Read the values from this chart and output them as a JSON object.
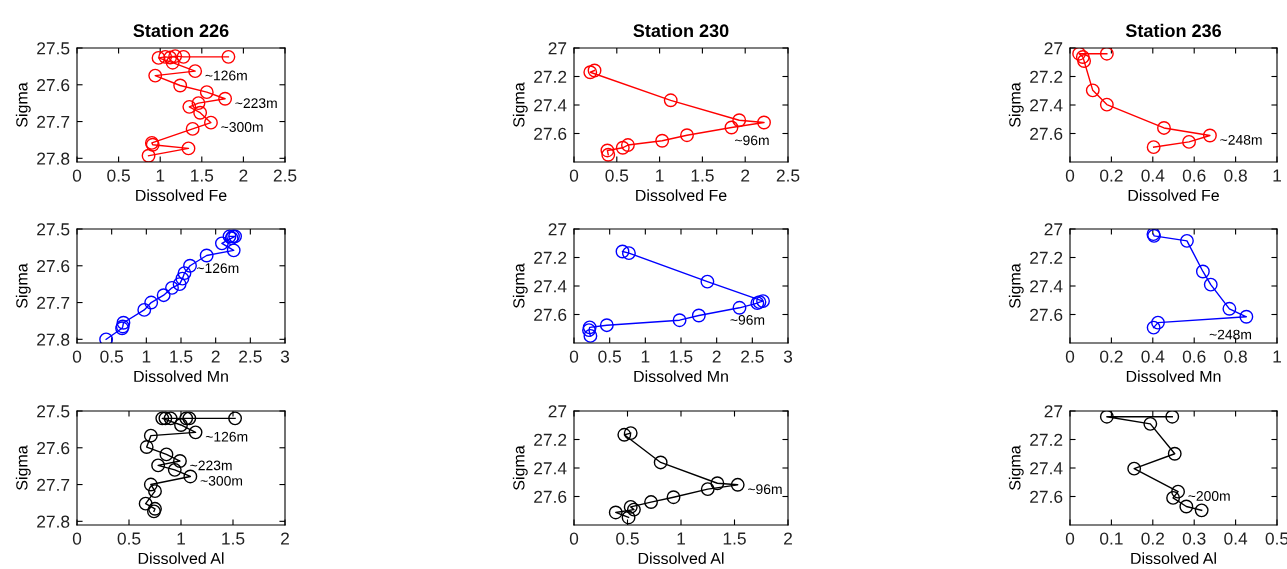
{
  "chart_data": [
    {
      "type": "line",
      "title": "Station 226",
      "xlabel": "Dissolved Fe",
      "ylabel": "Sigma",
      "xlim": [
        0,
        2.5
      ],
      "xticks": [
        0,
        0.5,
        1,
        1.5,
        2,
        2.5
      ],
      "ylim": [
        27.81,
        27.5
      ],
      "yticks": [
        27.5,
        27.6,
        27.7,
        27.8
      ],
      "marker": "circle",
      "line_style": "solid",
      "grid": false,
      "series": [
        {
          "color": "#ff0000",
          "x": [
            1.82,
            1.28,
            1.18,
            1.12,
            1.06,
            0.98,
            1.15,
            1.42,
            0.94,
            1.24,
            1.56,
            1.78,
            1.46,
            1.35,
            1.48,
            1.61,
            1.39,
            0.9,
            0.91,
            1.34,
            0.86
          ],
          "values": [
            27.524,
            27.524,
            27.522,
            27.526,
            27.524,
            27.527,
            27.54,
            27.563,
            27.575,
            27.602,
            27.62,
            27.638,
            27.65,
            27.66,
            27.676,
            27.703,
            27.72,
            27.758,
            27.763,
            27.773,
            27.793
          ]
        }
      ],
      "annotations": [
        {
          "text": "~126m",
          "x": 1.42,
          "y": 27.563
        },
        {
          "text": "~223m",
          "x": 1.78,
          "y": 27.638
        },
        {
          "text": "~300m",
          "x": 1.61,
          "y": 27.703
        }
      ]
    },
    {
      "type": "line",
      "title": "Station 230",
      "xlabel": "Dissolved Fe",
      "ylabel": "Sigma",
      "xlim": [
        0,
        2.5
      ],
      "xticks": [
        0,
        0.5,
        1,
        1.5,
        2,
        2.5
      ],
      "ylim": [
        27.8,
        27
      ],
      "yticks": [
        27,
        27.2,
        27.4,
        27.6
      ],
      "marker": "circle",
      "line_style": "solid",
      "grid": false,
      "series": [
        {
          "color": "#ff0000",
          "x": [
            0.24,
            0.19,
            1.13,
            1.93,
            2.22,
            1.84,
            1.32,
            1.03,
            0.63,
            0.57,
            0.39,
            0.4
          ],
          "values": [
            27.158,
            27.17,
            27.367,
            27.507,
            27.523,
            27.558,
            27.612,
            27.651,
            27.681,
            27.7,
            27.719,
            27.749
          ]
        }
      ],
      "annotations": [
        {
          "text": "~96m",
          "x": 2.22,
          "y": 27.523
        }
      ]
    },
    {
      "type": "line",
      "title": "Station 236",
      "xlabel": "Dissolved Fe",
      "ylabel": "Sigma",
      "xlim": [
        0,
        1
      ],
      "xticks": [
        0,
        0.2,
        0.4,
        0.6,
        0.8,
        1
      ],
      "ylim": [
        27.8,
        27
      ],
      "yticks": [
        27,
        27.2,
        27.4,
        27.6
      ],
      "marker": "circle",
      "line_style": "solid",
      "grid": false,
      "series": [
        {
          "color": "#ff0000",
          "x": [
            0.178,
            0.044,
            0.062,
            0.068,
            0.11,
            0.178,
            0.454,
            0.676,
            0.575,
            0.404
          ],
          "values": [
            27.04,
            27.04,
            27.063,
            27.091,
            27.297,
            27.397,
            27.561,
            27.614,
            27.659,
            27.696
          ]
        }
      ],
      "annotations": [
        {
          "text": "~248m",
          "x": 0.676,
          "y": 27.614
        }
      ]
    },
    {
      "type": "line",
      "xlabel": "Dissolved Mn",
      "ylabel": "Sigma",
      "xlim": [
        0,
        3
      ],
      "xticks": [
        0,
        0.5,
        1,
        1.5,
        2,
        2.5,
        3
      ],
      "ylim": [
        27.81,
        27.5
      ],
      "yticks": [
        27.5,
        27.6,
        27.7,
        27.8
      ],
      "marker": "circle",
      "line_style": "solid",
      "grid": false,
      "series": [
        {
          "color": "#0000ff",
          "x": [
            2.2,
            2.25,
            2.28,
            2.23,
            2.09,
            2.26,
            1.87,
            1.63,
            1.55,
            1.52,
            1.48,
            1.37,
            1.25,
            1.07,
            0.97,
            0.67,
            0.66,
            0.65,
            0.42
          ],
          "values": [
            27.52,
            27.52,
            27.52,
            27.525,
            27.539,
            27.558,
            27.572,
            27.6,
            27.62,
            27.635,
            27.65,
            27.66,
            27.68,
            27.7,
            27.72,
            27.755,
            27.765,
            27.77,
            27.8
          ]
        }
      ],
      "annotations": [
        {
          "text": "~126m",
          "x": 2.26,
          "y": 27.558
        }
      ]
    },
    {
      "type": "line",
      "xlabel": "Dissolved Mn",
      "ylabel": "Sigma",
      "xlim": [
        0,
        3
      ],
      "xticks": [
        0,
        0.5,
        1,
        1.5,
        2,
        2.5,
        3
      ],
      "ylim": [
        27.8,
        27
      ],
      "yticks": [
        27,
        27.2,
        27.4,
        27.6
      ],
      "marker": "circle",
      "line_style": "solid",
      "grid": false,
      "series": [
        {
          "color": "#0000ff",
          "x": [
            0.68,
            0.77,
            1.87,
            2.65,
            2.6,
            2.57,
            2.32,
            1.75,
            1.48,
            0.46,
            0.22,
            0.21,
            0.23
          ],
          "values": [
            27.158,
            27.169,
            27.369,
            27.506,
            27.513,
            27.52,
            27.553,
            27.607,
            27.64,
            27.675,
            27.69,
            27.71,
            27.75
          ]
        }
      ],
      "annotations": [
        {
          "text": "~96m",
          "x": 2.6,
          "y": 27.513
        }
      ]
    },
    {
      "type": "line",
      "xlabel": "Dissolved Mn",
      "ylabel": "Sigma",
      "xlim": [
        0,
        1
      ],
      "xticks": [
        0,
        0.2,
        0.4,
        0.6,
        0.8,
        1
      ],
      "ylim": [
        27.8,
        27
      ],
      "yticks": [
        27,
        27.2,
        27.4,
        27.6
      ],
      "marker": "circle",
      "line_style": "solid",
      "grid": false,
      "series": [
        {
          "color": "#0000ff",
          "x": [
            0.403,
            0.406,
            0.565,
            0.642,
            0.68,
            0.77,
            0.852,
            0.425,
            0.404
          ],
          "values": [
            27.036,
            27.048,
            27.083,
            27.298,
            27.39,
            27.56,
            27.616,
            27.657,
            27.692
          ]
        }
      ],
      "annotations": [
        {
          "text": "~248m",
          "x": 0.852,
          "y": 27.616
        }
      ]
    },
    {
      "type": "line",
      "xlabel": "Dissolved Al",
      "ylabel": "Sigma",
      "xlim": [
        0,
        2
      ],
      "xticks": [
        0,
        0.5,
        1,
        1.5,
        2
      ],
      "ylim": [
        27.81,
        27.5
      ],
      "yticks": [
        27.5,
        27.6,
        27.7,
        27.8
      ],
      "marker": "circle",
      "line_style": "solid",
      "grid": false,
      "series": [
        {
          "color": "#000000",
          "x": [
            1.52,
            1.08,
            1.05,
            0.9,
            0.85,
            0.82,
            1.0,
            1.14,
            0.71,
            0.67,
            0.86,
            0.99,
            0.78,
            0.94,
            1.09,
            0.71,
            0.75,
            0.66,
            0.75,
            0.74
          ],
          "values": [
            27.52,
            27.52,
            27.52,
            27.52,
            27.52,
            27.52,
            27.538,
            27.558,
            27.567,
            27.598,
            27.618,
            27.636,
            27.648,
            27.66,
            27.678,
            27.7,
            27.718,
            27.752,
            27.766,
            27.773
          ]
        }
      ],
      "annotations": [
        {
          "text": "~126m",
          "x": 1.14,
          "y": 27.558
        },
        {
          "text": "~223m",
          "x": 0.99,
          "y": 27.636
        },
        {
          "text": "~300m",
          "x": 1.09,
          "y": 27.678
        }
      ]
    },
    {
      "type": "line",
      "xlabel": "Dissolved Al",
      "ylabel": "Sigma",
      "xlim": [
        0,
        2
      ],
      "xticks": [
        0,
        0.5,
        1,
        1.5,
        2
      ],
      "ylim": [
        27.8,
        27
      ],
      "yticks": [
        27,
        27.2,
        27.4,
        27.6
      ],
      "marker": "circle",
      "line_style": "solid",
      "grid": false,
      "series": [
        {
          "color": "#000000",
          "x": [
            0.53,
            0.47,
            0.81,
            1.34,
            1.53,
            1.25,
            0.93,
            0.72,
            0.53,
            0.56,
            0.39,
            0.51
          ],
          "values": [
            27.155,
            27.167,
            27.361,
            27.507,
            27.518,
            27.548,
            27.605,
            27.639,
            27.673,
            27.692,
            27.712,
            27.747
          ]
        }
      ],
      "annotations": [
        {
          "text": "~96m",
          "x": 1.53,
          "y": 27.518
        }
      ]
    },
    {
      "type": "line",
      "xlabel": "Dissolved Al",
      "ylabel": "Sigma",
      "xlim": [
        0,
        0.5
      ],
      "xticks": [
        0,
        0.1,
        0.2,
        0.3,
        0.4,
        0.5
      ],
      "ylim": [
        27.8,
        27
      ],
      "yticks": [
        27,
        27.2,
        27.4,
        27.6
      ],
      "marker": "circle",
      "line_style": "solid",
      "grid": false,
      "series": [
        {
          "color": "#000000",
          "x": [
            0.247,
            0.089,
            0.194,
            0.253,
            0.155,
            0.261,
            0.249,
            0.281,
            0.318
          ],
          "values": [
            27.04,
            27.04,
            27.09,
            27.3,
            27.404,
            27.566,
            27.61,
            27.67,
            27.697
          ]
        }
      ],
      "annotations": [
        {
          "text": "~200m",
          "x": 0.261,
          "y": 27.566
        }
      ]
    }
  ]
}
